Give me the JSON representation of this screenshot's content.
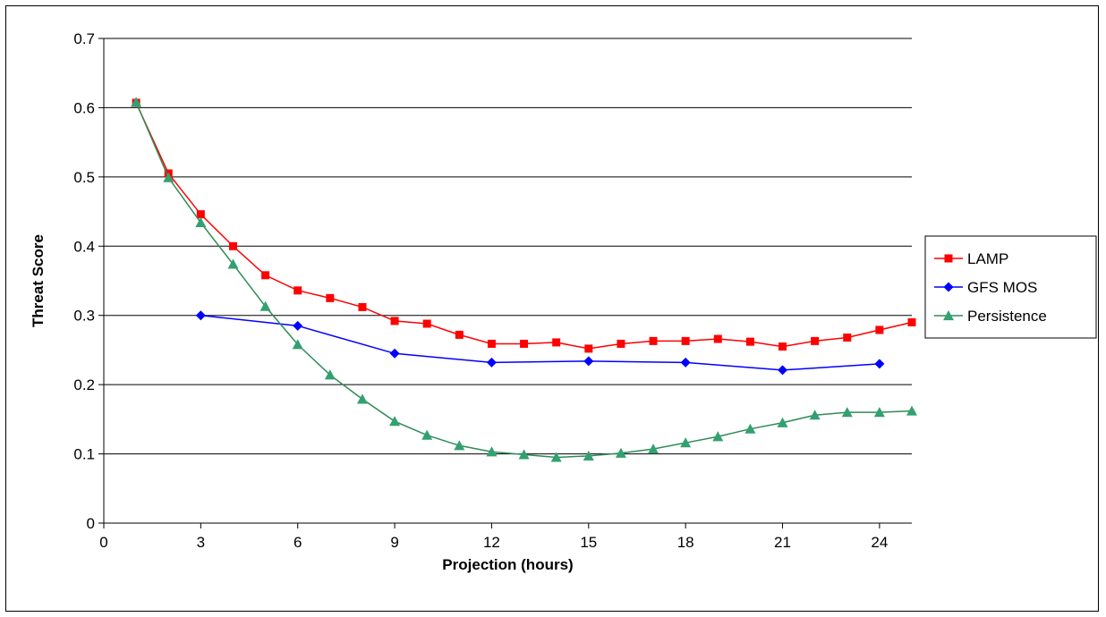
{
  "chart_data": {
    "type": "line",
    "title": "",
    "xlabel": "Projection (hours)",
    "ylabel": "Threat Score",
    "xlim": [
      0,
      25
    ],
    "ylim": [
      0,
      0.7
    ],
    "xticks": [
      0,
      3,
      6,
      9,
      12,
      15,
      18,
      21,
      24
    ],
    "yticks": [
      0,
      0.1,
      0.2,
      0.3,
      0.4,
      0.5,
      0.6,
      0.7
    ],
    "xtick_labels": [
      "0",
      "3",
      "6",
      "9",
      "12",
      "15",
      "18",
      "21",
      "24"
    ],
    "ytick_labels": [
      "0",
      "0.1",
      "0.2",
      "0.3",
      "0.4",
      "0.5",
      "0.6",
      "0.7"
    ],
    "grid": "horizontal",
    "legend_position": "right",
    "series": [
      {
        "name": "LAMP",
        "color": "#ff0000",
        "line_color": "#ff0000",
        "marker": "square",
        "x": [
          1,
          2,
          3,
          4,
          5,
          6,
          7,
          8,
          9,
          10,
          11,
          12,
          13,
          14,
          15,
          16,
          17,
          18,
          19,
          20,
          21,
          22,
          23,
          24,
          25
        ],
        "values": [
          0.607,
          0.505,
          0.446,
          0.4,
          0.358,
          0.336,
          0.325,
          0.312,
          0.292,
          0.288,
          0.272,
          0.259,
          0.259,
          0.261,
          0.252,
          0.259,
          0.263,
          0.263,
          0.266,
          0.262,
          0.255,
          0.263,
          0.268,
          0.279,
          0.29
        ]
      },
      {
        "name": "GFS MOS",
        "color": "#0000ff",
        "line_color": "#0000ff",
        "marker": "diamond",
        "x": [
          3,
          6,
          9,
          12,
          15,
          18,
          21,
          24
        ],
        "values": [
          0.3,
          0.285,
          0.245,
          0.232,
          0.234,
          0.232,
          0.221,
          0.23
        ]
      },
      {
        "name": "Persistence",
        "color": "#33a070",
        "line_color": "#2e8b57",
        "marker": "triangle",
        "x": [
          1,
          2,
          3,
          4,
          5,
          6,
          7,
          8,
          9,
          10,
          11,
          12,
          13,
          14,
          15,
          16,
          17,
          18,
          19,
          20,
          21,
          22,
          23,
          24,
          25
        ],
        "values": [
          0.608,
          0.499,
          0.434,
          0.374,
          0.313,
          0.258,
          0.214,
          0.179,
          0.147,
          0.127,
          0.112,
          0.103,
          0.099,
          0.095,
          0.097,
          0.101,
          0.107,
          0.116,
          0.125,
          0.136,
          0.145,
          0.156,
          0.16,
          0.16,
          0.162
        ]
      }
    ]
  }
}
